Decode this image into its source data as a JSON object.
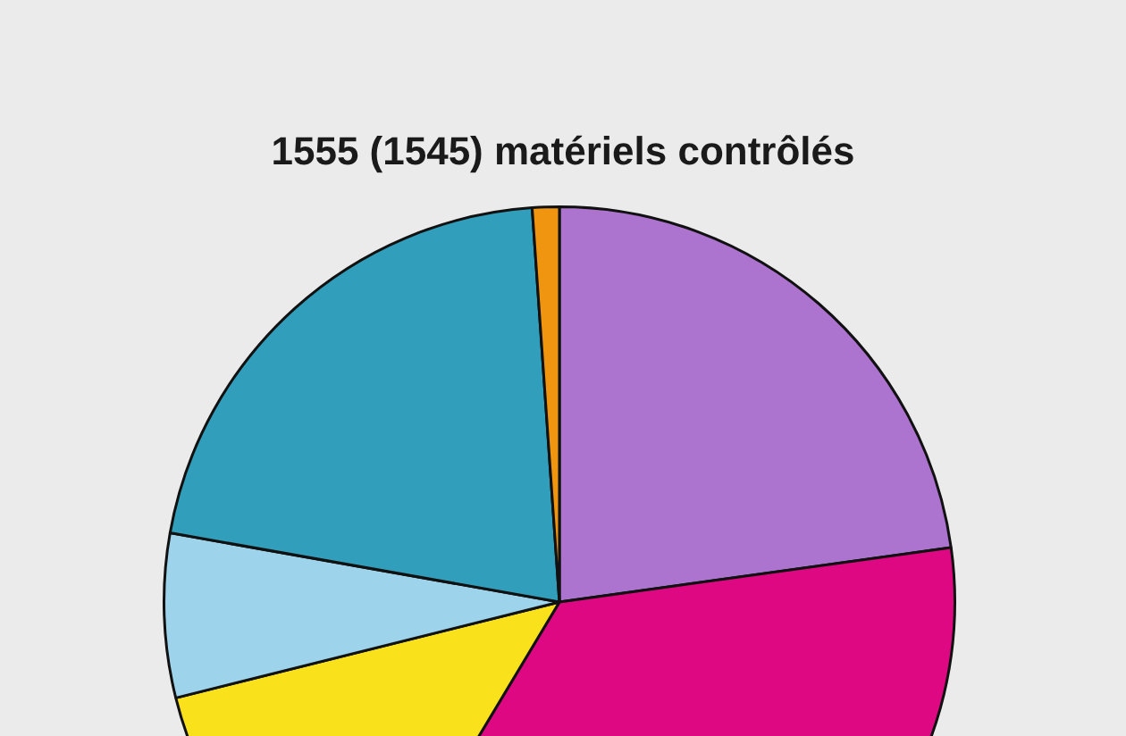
{
  "chart_data": {
    "type": "pie",
    "title": "1555 (1545) matériels contrôlés",
    "categories": [
      null,
      null,
      null,
      null,
      null,
      null
    ],
    "values": [
      22.8,
      35.8,
      12.5,
      6.7,
      21.1,
      1.1
    ],
    "colors": [
      "#ad74cf",
      "#df0883",
      "#f9e21c",
      "#9dd4ec",
      "#319fbc",
      "#f0950f"
    ]
  }
}
